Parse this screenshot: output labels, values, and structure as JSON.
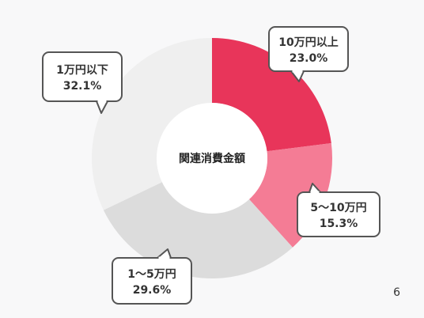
{
  "chart_data": {
    "type": "pie",
    "center_label": "関連消費金額",
    "slices": [
      {
        "name": "10万円以上",
        "value": 23.0,
        "value_label": "23.0%",
        "color": "#e8355a"
      },
      {
        "name": "5〜10万円",
        "value": 15.3,
        "value_label": "15.3%",
        "color": "#f47c95"
      },
      {
        "name": "1〜5万円",
        "value": 29.6,
        "value_label": "29.6%",
        "color": "#dcdcdc"
      },
      {
        "name": "1万円以下",
        "value": 32.1,
        "value_label": "32.1%",
        "color": "#efefef"
      }
    ]
  },
  "page_number": "6"
}
